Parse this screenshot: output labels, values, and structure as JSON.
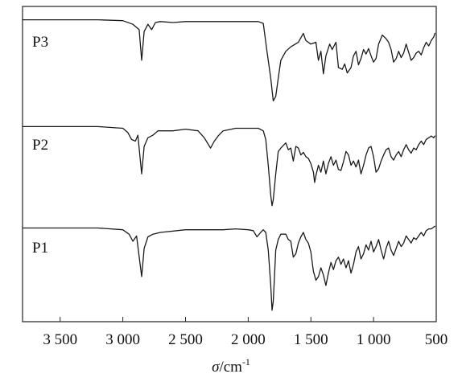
{
  "chart_data": {
    "type": "line",
    "title": "",
    "xlabel": "σ/cm⁻¹",
    "xlabel_parts": {
      "symbol": "σ",
      "unit": "/cm",
      "exp": "-1"
    },
    "ylabel": "",
    "x_reversed": true,
    "xlim": [
      3800,
      500
    ],
    "xticks": [
      3500,
      3000,
      2500,
      2000,
      1500,
      1000,
      500
    ],
    "xtick_labels": [
      "3 500",
      "3 000",
      "2 500",
      "2 000",
      "1 500",
      "1 000",
      "500"
    ],
    "y_scale": "relative transmittance, stacked, no axis",
    "grid": false,
    "series": [
      {
        "name": "P3",
        "points": [
          [
            3800,
            0.95
          ],
          [
            3600,
            0.95
          ],
          [
            3400,
            0.95
          ],
          [
            3200,
            0.95
          ],
          [
            3000,
            0.94
          ],
          [
            2920,
            0.9
          ],
          [
            2870,
            0.84
          ],
          [
            2850,
            0.5
          ],
          [
            2830,
            0.82
          ],
          [
            2800,
            0.9
          ],
          [
            2770,
            0.84
          ],
          [
            2740,
            0.92
          ],
          [
            2700,
            0.93
          ],
          [
            2600,
            0.92
          ],
          [
            2500,
            0.93
          ],
          [
            2400,
            0.93
          ],
          [
            2200,
            0.93
          ],
          [
            2000,
            0.93
          ],
          [
            1920,
            0.93
          ],
          [
            1880,
            0.91
          ],
          [
            1850,
            0.6
          ],
          [
            1820,
            0.3
          ],
          [
            1800,
            0.05
          ],
          [
            1780,
            0.1
          ],
          [
            1760,
            0.3
          ],
          [
            1740,
            0.5
          ],
          [
            1700,
            0.6
          ],
          [
            1660,
            0.65
          ],
          [
            1600,
            0.7
          ],
          [
            1560,
            0.8
          ],
          [
            1540,
            0.72
          ],
          [
            1500,
            0.68
          ],
          [
            1460,
            0.7
          ],
          [
            1440,
            0.5
          ],
          [
            1420,
            0.6
          ],
          [
            1400,
            0.35
          ],
          [
            1380,
            0.55
          ],
          [
            1350,
            0.68
          ],
          [
            1330,
            0.62
          ],
          [
            1300,
            0.7
          ],
          [
            1280,
            0.42
          ],
          [
            1250,
            0.4
          ],
          [
            1230,
            0.46
          ],
          [
            1210,
            0.36
          ],
          [
            1180,
            0.42
          ],
          [
            1160,
            0.55
          ],
          [
            1140,
            0.6
          ],
          [
            1120,
            0.45
          ],
          [
            1100,
            0.52
          ],
          [
            1080,
            0.62
          ],
          [
            1060,
            0.57
          ],
          [
            1040,
            0.63
          ],
          [
            1020,
            0.55
          ],
          [
            1000,
            0.48
          ],
          [
            980,
            0.52
          ],
          [
            960,
            0.68
          ],
          [
            930,
            0.78
          ],
          [
            900,
            0.74
          ],
          [
            880,
            0.7
          ],
          [
            860,
            0.62
          ],
          [
            840,
            0.48
          ],
          [
            820,
            0.52
          ],
          [
            800,
            0.6
          ],
          [
            780,
            0.53
          ],
          [
            760,
            0.58
          ],
          [
            740,
            0.68
          ],
          [
            700,
            0.5
          ],
          [
            680,
            0.53
          ],
          [
            660,
            0.58
          ],
          [
            640,
            0.6
          ],
          [
            620,
            0.56
          ],
          [
            600,
            0.64
          ],
          [
            580,
            0.7
          ],
          [
            560,
            0.66
          ],
          [
            540,
            0.72
          ],
          [
            520,
            0.76
          ],
          [
            510,
            0.8
          ]
        ]
      },
      {
        "name": "P2",
        "points": [
          [
            3800,
            0.95
          ],
          [
            3600,
            0.95
          ],
          [
            3400,
            0.95
          ],
          [
            3200,
            0.95
          ],
          [
            3000,
            0.93
          ],
          [
            2960,
            0.88
          ],
          [
            2930,
            0.8
          ],
          [
            2900,
            0.78
          ],
          [
            2880,
            0.85
          ],
          [
            2850,
            0.4
          ],
          [
            2830,
            0.72
          ],
          [
            2800,
            0.82
          ],
          [
            2760,
            0.85
          ],
          [
            2720,
            0.9
          ],
          [
            2600,
            0.9
          ],
          [
            2500,
            0.92
          ],
          [
            2400,
            0.9
          ],
          [
            2350,
            0.82
          ],
          [
            2300,
            0.7
          ],
          [
            2270,
            0.78
          ],
          [
            2240,
            0.84
          ],
          [
            2200,
            0.9
          ],
          [
            2100,
            0.93
          ],
          [
            2000,
            0.93
          ],
          [
            1920,
            0.93
          ],
          [
            1880,
            0.9
          ],
          [
            1860,
            0.8
          ],
          [
            1840,
            0.5
          ],
          [
            1820,
            0.15
          ],
          [
            1810,
            0.03
          ],
          [
            1800,
            0.1
          ],
          [
            1780,
            0.4
          ],
          [
            1760,
            0.66
          ],
          [
            1740,
            0.7
          ],
          [
            1700,
            0.76
          ],
          [
            1680,
            0.68
          ],
          [
            1660,
            0.7
          ],
          [
            1640,
            0.55
          ],
          [
            1620,
            0.72
          ],
          [
            1600,
            0.7
          ],
          [
            1580,
            0.62
          ],
          [
            1560,
            0.65
          ],
          [
            1540,
            0.6
          ],
          [
            1520,
            0.58
          ],
          [
            1500,
            0.52
          ],
          [
            1480,
            0.42
          ],
          [
            1470,
            0.3
          ],
          [
            1460,
            0.38
          ],
          [
            1440,
            0.5
          ],
          [
            1420,
            0.42
          ],
          [
            1400,
            0.55
          ],
          [
            1380,
            0.4
          ],
          [
            1360,
            0.52
          ],
          [
            1340,
            0.6
          ],
          [
            1320,
            0.5
          ],
          [
            1300,
            0.56
          ],
          [
            1280,
            0.45
          ],
          [
            1260,
            0.44
          ],
          [
            1240,
            0.54
          ],
          [
            1220,
            0.66
          ],
          [
            1200,
            0.62
          ],
          [
            1180,
            0.5
          ],
          [
            1160,
            0.55
          ],
          [
            1140,
            0.48
          ],
          [
            1120,
            0.56
          ],
          [
            1100,
            0.4
          ],
          [
            1080,
            0.5
          ],
          [
            1060,
            0.62
          ],
          [
            1040,
            0.7
          ],
          [
            1020,
            0.72
          ],
          [
            1000,
            0.6
          ],
          [
            980,
            0.42
          ],
          [
            960,
            0.46
          ],
          [
            940,
            0.55
          ],
          [
            920,
            0.62
          ],
          [
            900,
            0.68
          ],
          [
            880,
            0.7
          ],
          [
            860,
            0.6
          ],
          [
            840,
            0.56
          ],
          [
            820,
            0.62
          ],
          [
            800,
            0.66
          ],
          [
            780,
            0.6
          ],
          [
            760,
            0.68
          ],
          [
            740,
            0.74
          ],
          [
            720,
            0.68
          ],
          [
            700,
            0.64
          ],
          [
            680,
            0.7
          ],
          [
            660,
            0.68
          ],
          [
            640,
            0.74
          ],
          [
            620,
            0.78
          ],
          [
            600,
            0.74
          ],
          [
            580,
            0.8
          ],
          [
            560,
            0.82
          ],
          [
            540,
            0.84
          ],
          [
            520,
            0.82
          ],
          [
            510,
            0.84
          ]
        ]
      },
      {
        "name": "P1",
        "points": [
          [
            3800,
            0.95
          ],
          [
            3600,
            0.95
          ],
          [
            3400,
            0.95
          ],
          [
            3200,
            0.95
          ],
          [
            3000,
            0.93
          ],
          [
            2950,
            0.88
          ],
          [
            2920,
            0.8
          ],
          [
            2890,
            0.86
          ],
          [
            2850,
            0.4
          ],
          [
            2830,
            0.72
          ],
          [
            2800,
            0.85
          ],
          [
            2760,
            0.88
          ],
          [
            2700,
            0.9
          ],
          [
            2500,
            0.93
          ],
          [
            2200,
            0.93
          ],
          [
            2100,
            0.94
          ],
          [
            2000,
            0.93
          ],
          [
            1960,
            0.92
          ],
          [
            1930,
            0.85
          ],
          [
            1900,
            0.9
          ],
          [
            1880,
            0.93
          ],
          [
            1860,
            0.9
          ],
          [
            1840,
            0.7
          ],
          [
            1820,
            0.3
          ],
          [
            1810,
            0.02
          ],
          [
            1800,
            0.12
          ],
          [
            1780,
            0.7
          ],
          [
            1760,
            0.82
          ],
          [
            1740,
            0.88
          ],
          [
            1700,
            0.88
          ],
          [
            1680,
            0.82
          ],
          [
            1660,
            0.8
          ],
          [
            1640,
            0.62
          ],
          [
            1620,
            0.66
          ],
          [
            1600,
            0.78
          ],
          [
            1580,
            0.85
          ],
          [
            1560,
            0.9
          ],
          [
            1540,
            0.82
          ],
          [
            1520,
            0.78
          ],
          [
            1500,
            0.68
          ],
          [
            1480,
            0.46
          ],
          [
            1460,
            0.36
          ],
          [
            1440,
            0.4
          ],
          [
            1420,
            0.5
          ],
          [
            1400,
            0.42
          ],
          [
            1380,
            0.3
          ],
          [
            1360,
            0.44
          ],
          [
            1340,
            0.56
          ],
          [
            1320,
            0.48
          ],
          [
            1300,
            0.58
          ],
          [
            1280,
            0.62
          ],
          [
            1260,
            0.54
          ],
          [
            1240,
            0.6
          ],
          [
            1220,
            0.5
          ],
          [
            1200,
            0.58
          ],
          [
            1180,
            0.44
          ],
          [
            1160,
            0.54
          ],
          [
            1140,
            0.68
          ],
          [
            1120,
            0.74
          ],
          [
            1100,
            0.6
          ],
          [
            1080,
            0.66
          ],
          [
            1060,
            0.76
          ],
          [
            1040,
            0.7
          ],
          [
            1020,
            0.8
          ],
          [
            1000,
            0.68
          ],
          [
            980,
            0.74
          ],
          [
            960,
            0.82
          ],
          [
            940,
            0.7
          ],
          [
            920,
            0.6
          ],
          [
            900,
            0.72
          ],
          [
            880,
            0.8
          ],
          [
            860,
            0.7
          ],
          [
            840,
            0.64
          ],
          [
            820,
            0.72
          ],
          [
            800,
            0.8
          ],
          [
            780,
            0.74
          ],
          [
            760,
            0.78
          ],
          [
            740,
            0.86
          ],
          [
            720,
            0.82
          ],
          [
            700,
            0.78
          ],
          [
            680,
            0.84
          ],
          [
            660,
            0.82
          ],
          [
            640,
            0.86
          ],
          [
            620,
            0.9
          ],
          [
            600,
            0.86
          ],
          [
            580,
            0.92
          ],
          [
            560,
            0.94
          ],
          [
            540,
            0.94
          ],
          [
            520,
            0.96
          ],
          [
            510,
            0.97
          ]
        ]
      }
    ]
  }
}
